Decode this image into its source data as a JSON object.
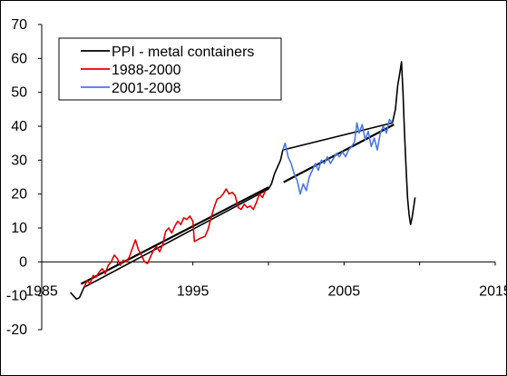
{
  "chart_data": {
    "type": "line",
    "title": "",
    "xlabel": "",
    "ylabel": "",
    "xlim": [
      1985,
      2015
    ],
    "ylim": [
      -20,
      70
    ],
    "x_ticks": [
      "1985",
      "1995",
      "2005",
      "2015"
    ],
    "y_ticks": [
      "70",
      "60",
      "50",
      "40",
      "30",
      "20",
      "10",
      "0",
      "-10",
      "-20"
    ],
    "grid": false,
    "legend_position": "top-left",
    "series": [
      {
        "name": "PPI - metal containers",
        "color": "#000000",
        "points": [
          [
            1986.9,
            -9.0
          ],
          [
            1987.1,
            -10.0
          ],
          [
            1987.3,
            -11.0
          ],
          [
            1987.5,
            -10.5
          ],
          [
            1987.8,
            -7.5
          ],
          [
            1999.8,
            21.0
          ],
          [
            2000.0,
            21.5
          ],
          [
            2000.2,
            23.0
          ],
          [
            2000.4,
            26.0
          ],
          [
            2000.6,
            28.0
          ],
          [
            2000.8,
            30.0
          ],
          [
            2000.95,
            33.0
          ],
          [
            2008.2,
            41.0
          ],
          [
            2008.4,
            45.0
          ],
          [
            2008.55,
            52.0
          ],
          [
            2008.7,
            56.0
          ],
          [
            2008.8,
            59.0
          ],
          [
            2008.9,
            50.0
          ],
          [
            2009.0,
            38.0
          ],
          [
            2009.1,
            28.0
          ],
          [
            2009.2,
            19.0
          ],
          [
            2009.3,
            14.0
          ],
          [
            2009.4,
            11.0
          ],
          [
            2009.5,
            13.0
          ],
          [
            2009.6,
            16.0
          ],
          [
            2009.7,
            19.0
          ]
        ]
      },
      {
        "name": "1988-2000",
        "color": "#e00000",
        "points": [
          [
            1987.8,
            -7.5
          ],
          [
            1988.0,
            -5.5
          ],
          [
            1988.2,
            -6.5
          ],
          [
            1988.4,
            -4.0
          ],
          [
            1988.6,
            -4.5
          ],
          [
            1988.8,
            -3.0
          ],
          [
            1989.0,
            -2.0
          ],
          [
            1989.2,
            -3.5
          ],
          [
            1989.4,
            -1.0
          ],
          [
            1989.6,
            0.0
          ],
          [
            1989.8,
            2.0
          ],
          [
            1990.0,
            1.0
          ],
          [
            1990.2,
            -1.0
          ],
          [
            1990.4,
            0.5
          ],
          [
            1990.6,
            0.0
          ],
          [
            1990.8,
            1.5
          ],
          [
            1991.0,
            4.0
          ],
          [
            1991.2,
            6.5
          ],
          [
            1991.4,
            3.5
          ],
          [
            1991.6,
            2.0
          ],
          [
            1991.8,
            0.0
          ],
          [
            1992.0,
            -0.5
          ],
          [
            1992.2,
            1.5
          ],
          [
            1992.4,
            3.5
          ],
          [
            1992.6,
            4.5
          ],
          [
            1992.8,
            3.0
          ],
          [
            1993.0,
            5.0
          ],
          [
            1993.2,
            9.0
          ],
          [
            1993.4,
            10.0
          ],
          [
            1993.6,
            8.5
          ],
          [
            1993.8,
            10.5
          ],
          [
            1994.0,
            12.0
          ],
          [
            1994.2,
            11.0
          ],
          [
            1994.4,
            13.0
          ],
          [
            1994.6,
            12.5
          ],
          [
            1994.8,
            13.5
          ],
          [
            1995.0,
            12.0
          ],
          [
            1995.1,
            6.0
          ],
          [
            1995.3,
            6.5
          ],
          [
            1995.5,
            7.0
          ],
          [
            1995.8,
            7.5
          ],
          [
            1996.0,
            9.5
          ],
          [
            1996.2,
            13.0
          ],
          [
            1996.4,
            16.0
          ],
          [
            1996.6,
            18.5
          ],
          [
            1996.8,
            19.0
          ],
          [
            1997.0,
            20.0
          ],
          [
            1997.2,
            21.5
          ],
          [
            1997.4,
            20.0
          ],
          [
            1997.6,
            20.5
          ],
          [
            1997.8,
            19.5
          ],
          [
            1998.0,
            16.0
          ],
          [
            1998.2,
            15.5
          ],
          [
            1998.4,
            17.0
          ],
          [
            1998.6,
            16.0
          ],
          [
            1998.8,
            16.5
          ],
          [
            1999.0,
            15.5
          ],
          [
            1999.2,
            17.5
          ],
          [
            1999.4,
            20.0
          ],
          [
            1999.6,
            19.0
          ],
          [
            1999.8,
            21.0
          ]
        ]
      },
      {
        "name": "2001-2008",
        "color": "#4a78e0",
        "points": [
          [
            2000.95,
            33.0
          ],
          [
            2001.1,
            35.0
          ],
          [
            2001.3,
            31.0
          ],
          [
            2001.5,
            29.0
          ],
          [
            2001.7,
            26.0
          ],
          [
            2001.9,
            24.0
          ],
          [
            2002.1,
            20.0
          ],
          [
            2002.3,
            23.0
          ],
          [
            2002.5,
            21.0
          ],
          [
            2002.7,
            25.0
          ],
          [
            2002.9,
            27.0
          ],
          [
            2003.1,
            29.0
          ],
          [
            2003.3,
            27.0
          ],
          [
            2003.5,
            30.0
          ],
          [
            2003.7,
            29.0
          ],
          [
            2003.9,
            31.0
          ],
          [
            2004.1,
            29.0
          ],
          [
            2004.3,
            30.5
          ],
          [
            2004.5,
            32.0
          ],
          [
            2004.7,
            31.0
          ],
          [
            2004.9,
            32.5
          ],
          [
            2005.1,
            31.0
          ],
          [
            2005.3,
            33.0
          ],
          [
            2005.5,
            34.0
          ],
          [
            2005.7,
            35.5
          ],
          [
            2005.85,
            41.0
          ],
          [
            2006.0,
            38.0
          ],
          [
            2006.2,
            40.5
          ],
          [
            2006.4,
            36.0
          ],
          [
            2006.6,
            38.5
          ],
          [
            2006.8,
            34.0
          ],
          [
            2007.0,
            36.5
          ],
          [
            2007.2,
            33.0
          ],
          [
            2007.4,
            38.0
          ],
          [
            2007.6,
            40.0
          ],
          [
            2007.8,
            38.0
          ],
          [
            2008.0,
            42.0
          ],
          [
            2008.2,
            41.0
          ]
        ]
      }
    ],
    "trend_lines": [
      {
        "color": "#000000",
        "from": [
          1987.6,
          -6.5
        ],
        "to": [
          2000.0,
          22.0
        ]
      },
      {
        "color": "#000000",
        "from": [
          2001.0,
          23.5
        ],
        "to": [
          2008.3,
          40.5
        ]
      }
    ]
  }
}
